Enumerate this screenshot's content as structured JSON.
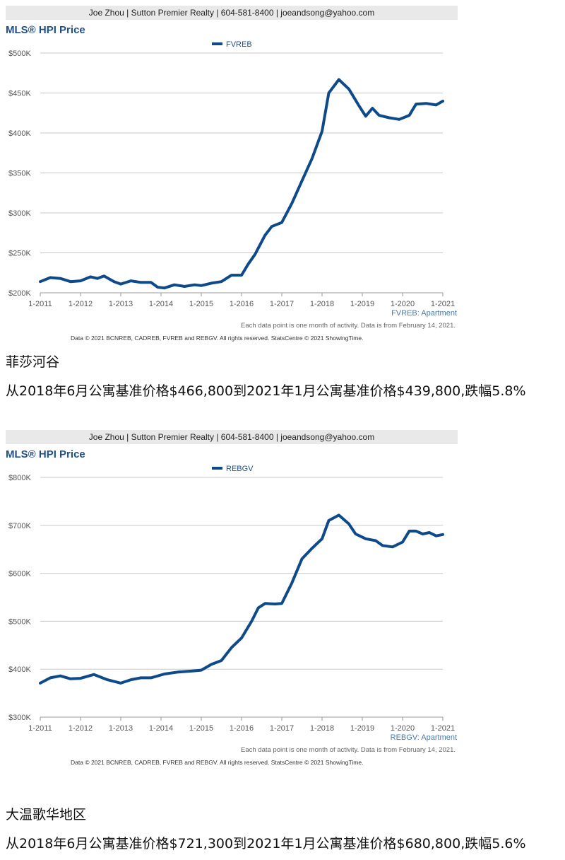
{
  "charts": [
    {
      "agent_bar": "Joe Zhou | Sutton Premier Realty | 604-581-8400 | joeandsong@yahoo.com",
      "title": "MLS® HPI Price",
      "series_label": "FVREB: Apartment",
      "note": "Each data point is one month of activity. Data is from February 14, 2021.",
      "copyright": "Data © 2021 BCNREB, CADREB, FVREB and REBGV. All rights reserved. StatsCentre © 2021 ShowingTime.",
      "caption_title": "菲莎河谷",
      "caption_text": "从2018年6月公寓基准价格$466,800到2021年1月公寓基准价格$439,800,跌幅5.8%"
    },
    {
      "agent_bar": "Joe Zhou | Sutton Premier Realty | 604-581-8400 | joeandsong@yahoo.com",
      "title": "MLS® HPI Price",
      "series_label": "REBGV: Apartment",
      "note": "Each data point is one month of activity. Data is from February 14, 2021.",
      "copyright": "Data © 2021 BCNREB, CADREB, FVREB and REBGV. All rights reserved. StatsCentre © 2021 ShowingTime.",
      "caption_title": "大温歌华地区",
      "caption_text": "从2018年6月公寓基准价格$721,300到2021年1月公寓基准价格$680,800,跌幅5.6%"
    }
  ],
  "chart_data": [
    {
      "type": "line",
      "title": "MLS® HPI Price",
      "legend": "FVREB",
      "legend_position": "top-center",
      "grid": true,
      "line_color": "#0e4a8a",
      "yticks": [
        "$200K",
        "$250K",
        "$300K",
        "$350K",
        "$400K",
        "$450K",
        "$500K"
      ],
      "ylim": [
        200000,
        500000
      ],
      "xticks": [
        "1-2011",
        "1-2012",
        "1-2013",
        "1-2014",
        "1-2015",
        "1-2016",
        "1-2017",
        "1-2018",
        "1-2019",
        "1-2020",
        "1-2021"
      ],
      "x_range": [
        "2011-01",
        "2021-01"
      ],
      "series": [
        {
          "name": "FVREB",
          "points": [
            [
              "2011-01",
              214000
            ],
            [
              "2011-04",
              219000
            ],
            [
              "2011-07",
              218000
            ],
            [
              "2011-10",
              214000
            ],
            [
              "2012-01",
              215000
            ],
            [
              "2012-04",
              220000
            ],
            [
              "2012-06",
              218000
            ],
            [
              "2012-08",
              221000
            ],
            [
              "2012-11",
              214000
            ],
            [
              "2013-01",
              211000
            ],
            [
              "2013-04",
              215000
            ],
            [
              "2013-07",
              213000
            ],
            [
              "2013-10",
              213000
            ],
            [
              "2013-12",
              207000
            ],
            [
              "2014-02",
              206000
            ],
            [
              "2014-05",
              210000
            ],
            [
              "2014-08",
              208000
            ],
            [
              "2014-11",
              210000
            ],
            [
              "2015-01",
              209000
            ],
            [
              "2015-04",
              212000
            ],
            [
              "2015-07",
              214000
            ],
            [
              "2015-10",
              222000
            ],
            [
              "2016-01",
              222000
            ],
            [
              "2016-03",
              236000
            ],
            [
              "2016-05",
              248000
            ],
            [
              "2016-08",
              272000
            ],
            [
              "2016-10",
              283000
            ],
            [
              "2017-01",
              288000
            ],
            [
              "2017-04",
              312000
            ],
            [
              "2017-07",
              340000
            ],
            [
              "2017-10",
              368000
            ],
            [
              "2018-01",
              402000
            ],
            [
              "2018-03",
              450000
            ],
            [
              "2018-06",
              466800
            ],
            [
              "2018-09",
              455000
            ],
            [
              "2018-12",
              434000
            ],
            [
              "2019-02",
              421000
            ],
            [
              "2019-04",
              431000
            ],
            [
              "2019-06",
              422000
            ],
            [
              "2019-09",
              419000
            ],
            [
              "2019-12",
              417000
            ],
            [
              "2020-03",
              422000
            ],
            [
              "2020-05",
              436000
            ],
            [
              "2020-08",
              437000
            ],
            [
              "2020-11",
              435000
            ],
            [
              "2021-01",
              439800
            ]
          ]
        }
      ]
    },
    {
      "type": "line",
      "title": "MLS® HPI Price",
      "legend": "REBGV",
      "legend_position": "top-center",
      "grid": true,
      "line_color": "#0e4a8a",
      "yticks": [
        "$300K",
        "$400K",
        "$500K",
        "$600K",
        "$700K",
        "$800K"
      ],
      "ylim": [
        300000,
        800000
      ],
      "xticks": [
        "1-2011",
        "1-2012",
        "1-2013",
        "1-2014",
        "1-2015",
        "1-2016",
        "1-2017",
        "1-2018",
        "1-2019",
        "1-2020",
        "1-2021"
      ],
      "x_range": [
        "2011-01",
        "2021-01"
      ],
      "series": [
        {
          "name": "REBGV",
          "points": [
            [
              "2011-01",
              371000
            ],
            [
              "2011-04",
              382000
            ],
            [
              "2011-07",
              386000
            ],
            [
              "2011-10",
              380000
            ],
            [
              "2012-01",
              381000
            ],
            [
              "2012-05",
              389000
            ],
            [
              "2012-09",
              378000
            ],
            [
              "2013-01",
              371000
            ],
            [
              "2013-04",
              378000
            ],
            [
              "2013-07",
              382000
            ],
            [
              "2013-10",
              382000
            ],
            [
              "2014-02",
              390000
            ],
            [
              "2014-06",
              394000
            ],
            [
              "2014-10",
              396000
            ],
            [
              "2015-01",
              398000
            ],
            [
              "2015-04",
              410000
            ],
            [
              "2015-07",
              418000
            ],
            [
              "2015-10",
              445000
            ],
            [
              "2016-01",
              465000
            ],
            [
              "2016-04",
              500000
            ],
            [
              "2016-06",
              528000
            ],
            [
              "2016-08",
              537000
            ],
            [
              "2016-11",
              536000
            ],
            [
              "2017-01",
              537000
            ],
            [
              "2017-04",
              580000
            ],
            [
              "2017-07",
              630000
            ],
            [
              "2017-10",
              652000
            ],
            [
              "2018-01",
              672000
            ],
            [
              "2018-03",
              710000
            ],
            [
              "2018-06",
              721300
            ],
            [
              "2018-09",
              703000
            ],
            [
              "2018-11",
              682000
            ],
            [
              "2019-02",
              672000
            ],
            [
              "2019-05",
              668000
            ],
            [
              "2019-07",
              658000
            ],
            [
              "2019-10",
              655000
            ],
            [
              "2020-01",
              665000
            ],
            [
              "2020-03",
              688000
            ],
            [
              "2020-05",
              688000
            ],
            [
              "2020-07",
              682000
            ],
            [
              "2020-09",
              685000
            ],
            [
              "2020-11",
              678000
            ],
            [
              "2021-01",
              680800
            ]
          ]
        }
      ]
    }
  ]
}
